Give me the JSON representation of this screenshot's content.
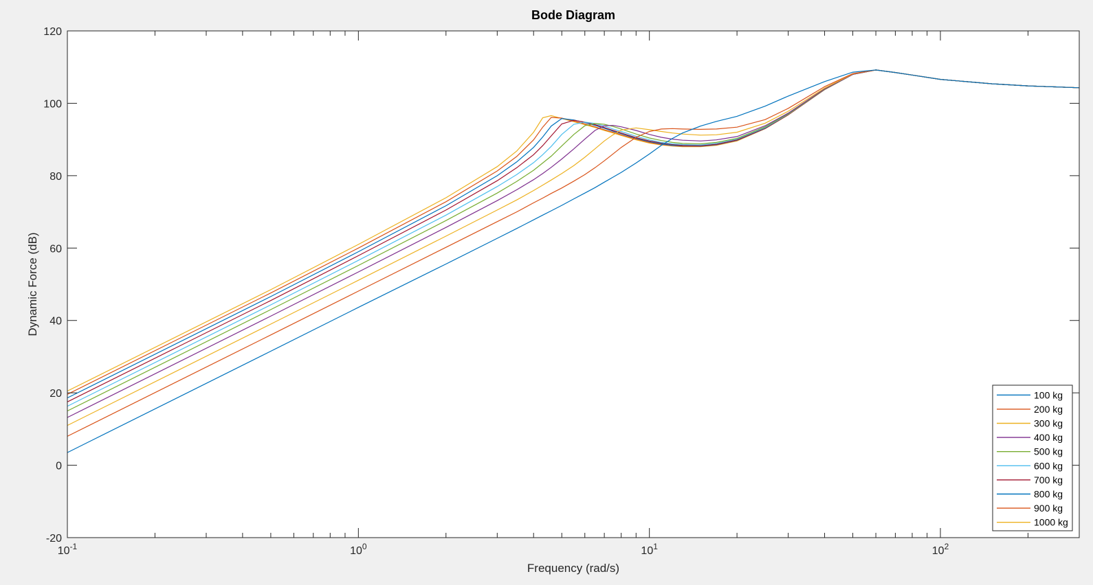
{
  "chart_data": {
    "type": "line",
    "title": "Bode Diagram",
    "xlabel": "Frequency  (rad/s)",
    "ylabel": "Dynamic Force (dB)",
    "xscale": "log",
    "xlim": [
      0.1,
      300
    ],
    "ylim": [
      -20,
      120
    ],
    "x_tick_labels": [
      {
        "base": "10",
        "exp": "-1",
        "value": 0.1
      },
      {
        "base": "10",
        "exp": "0",
        "value": 1
      },
      {
        "base": "10",
        "exp": "1",
        "value": 10
      },
      {
        "base": "10",
        "exp": "2",
        "value": 100
      }
    ],
    "y_ticks": [
      -20,
      0,
      20,
      40,
      60,
      80,
      100,
      120
    ],
    "grid": false,
    "legend_position": "bottom-right",
    "x": [
      0.1,
      0.5,
      1,
      2,
      3,
      3.5,
      4,
      4.3,
      4.6,
      5,
      5.5,
      6,
      6.5,
      7,
      7.5,
      8,
      9,
      10,
      11,
      12,
      13,
      15,
      17,
      20,
      25,
      30,
      40,
      50,
      60,
      70,
      80,
      100,
      150,
      200,
      300
    ],
    "series": [
      {
        "name": "100 kg",
        "color": "#0072bd",
        "values": [
          3.5,
          31.5,
          43.6,
          55.6,
          62.7,
          65.4,
          67.8,
          69.1,
          70.3,
          71.8,
          73.6,
          75.2,
          76.7,
          78.2,
          79.6,
          80.9,
          83.5,
          86.0,
          88.4,
          90.3,
          91.8,
          93.7,
          95.0,
          96.4,
          99.2,
          102.0,
          106.0,
          108.6,
          109.2,
          108.5,
          107.8,
          106.6,
          105.4,
          104.8,
          104.3
        ]
      },
      {
        "name": "200 kg",
        "color": "#d95319",
        "values": [
          8.0,
          36.0,
          48.1,
          60.2,
          67.3,
          70.0,
          72.5,
          73.8,
          75.1,
          76.6,
          78.5,
          80.3,
          82.2,
          84.1,
          86.0,
          87.8,
          90.6,
          92.2,
          92.9,
          93.0,
          92.9,
          92.8,
          92.9,
          93.4,
          95.5,
          98.6,
          104.6,
          108.2,
          109.2,
          108.5,
          107.8,
          106.6,
          105.4,
          104.8,
          104.3
        ]
      },
      {
        "name": "300 kg",
        "color": "#edb120",
        "values": [
          11.0,
          39.0,
          51.1,
          63.3,
          70.5,
          73.3,
          75.9,
          77.4,
          78.8,
          80.6,
          82.8,
          85.1,
          87.4,
          89.6,
          91.3,
          92.6,
          93.2,
          92.7,
          92.2,
          91.8,
          91.5,
          91.2,
          91.3,
          92.0,
          94.5,
          97.8,
          104.2,
          108.1,
          109.2,
          108.5,
          107.8,
          106.6,
          105.4,
          104.8,
          104.3
        ]
      },
      {
        "name": "400 kg",
        "color": "#7e2f8e",
        "values": [
          13.2,
          41.2,
          53.4,
          65.7,
          73.1,
          76.1,
          78.9,
          80.6,
          82.3,
          84.6,
          87.4,
          90.1,
          92.5,
          93.8,
          93.9,
          93.5,
          92.5,
          91.4,
          90.6,
          90.1,
          89.8,
          89.6,
          89.9,
          90.8,
          93.8,
          97.3,
          104.0,
          108.0,
          109.2,
          108.5,
          107.8,
          106.6,
          105.4,
          104.8,
          104.3
        ]
      },
      {
        "name": "500 kg",
        "color": "#77ac30",
        "values": [
          15.0,
          43.0,
          55.2,
          67.6,
          75.2,
          78.4,
          81.5,
          83.5,
          85.4,
          88.2,
          91.4,
          93.8,
          94.4,
          94.2,
          93.6,
          92.9,
          91.5,
          90.4,
          89.7,
          89.2,
          88.9,
          88.8,
          89.2,
          90.3,
          93.5,
          97.1,
          103.9,
          108.0,
          109.2,
          108.5,
          107.8,
          106.6,
          105.4,
          104.8,
          104.3
        ]
      },
      {
        "name": "600 kg",
        "color": "#4dbeee",
        "values": [
          16.3,
          44.3,
          56.6,
          69.1,
          77.0,
          80.3,
          83.6,
          85.8,
          88.1,
          91.4,
          94.2,
          94.8,
          94.4,
          93.7,
          92.9,
          92.2,
          90.9,
          89.9,
          89.2,
          88.8,
          88.6,
          88.5,
          88.9,
          90.1,
          93.3,
          97.0,
          103.9,
          108.0,
          109.2,
          108.5,
          107.8,
          106.6,
          105.4,
          104.8,
          104.3
        ]
      },
      {
        "name": "700 kg",
        "color": "#a2142f",
        "values": [
          17.5,
          45.5,
          57.9,
          70.5,
          78.6,
          82.2,
          85.8,
          88.3,
          91.0,
          94.3,
          95.3,
          94.8,
          94.1,
          93.3,
          92.5,
          91.8,
          90.5,
          89.6,
          89.0,
          88.6,
          88.4,
          88.3,
          88.7,
          89.9,
          93.2,
          96.9,
          103.8,
          108.0,
          109.2,
          108.5,
          107.8,
          106.6,
          105.4,
          104.8,
          104.3
        ]
      },
      {
        "name": "800 kg",
        "color": "#0072bd",
        "values": [
          18.6,
          46.6,
          59.0,
          71.7,
          80.0,
          83.8,
          87.8,
          90.7,
          93.7,
          95.8,
          95.4,
          94.7,
          93.9,
          93.1,
          92.3,
          91.6,
          90.3,
          89.4,
          88.8,
          88.4,
          88.3,
          88.2,
          88.6,
          89.8,
          93.1,
          96.9,
          103.8,
          108.0,
          109.2,
          108.5,
          107.8,
          106.6,
          105.4,
          104.8,
          104.3
        ]
      },
      {
        "name": "900 kg",
        "color": "#d95319",
        "values": [
          19.6,
          47.6,
          60.0,
          72.8,
          81.3,
          85.3,
          89.9,
          93.4,
          96.1,
          95.9,
          95.1,
          94.3,
          93.5,
          92.7,
          92.0,
          91.3,
          90.1,
          89.2,
          88.6,
          88.3,
          88.1,
          88.1,
          88.5,
          89.7,
          93.0,
          96.8,
          103.8,
          108.0,
          109.2,
          108.5,
          107.8,
          106.6,
          105.4,
          104.8,
          104.3
        ]
      },
      {
        "name": "1000 kg",
        "color": "#edb120",
        "values": [
          20.5,
          48.5,
          61.0,
          73.9,
          82.5,
          86.8,
          92.0,
          96.0,
          96.6,
          95.8,
          94.9,
          94.1,
          93.3,
          92.5,
          91.8,
          91.1,
          89.9,
          89.0,
          88.5,
          88.2,
          88.0,
          88.0,
          88.4,
          89.6,
          93.0,
          96.8,
          103.8,
          108.0,
          109.2,
          108.5,
          107.8,
          106.6,
          105.4,
          104.8,
          104.3
        ]
      }
    ]
  }
}
